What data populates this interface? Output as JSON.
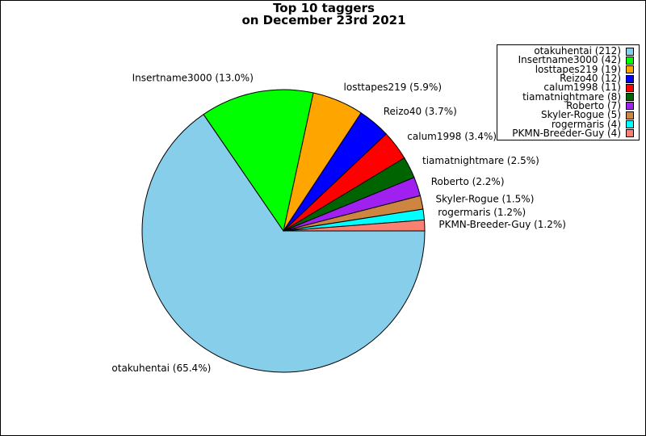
{
  "chart_data": {
    "type": "pie",
    "title": "Top 10 taggers",
    "subtitle": "on December 23rd 2021",
    "slices": [
      {
        "name": "otakuhentai",
        "count": 212,
        "percent_label": "65.4%",
        "color": "#87ceeb"
      },
      {
        "name": "Insertname3000",
        "count": 42,
        "percent_label": "13.0%",
        "color": "#00ff00"
      },
      {
        "name": "losttapes219",
        "count": 19,
        "percent_label": "5.9%",
        "color": "#ffa500"
      },
      {
        "name": "Reizo40",
        "count": 12,
        "percent_label": "3.7%",
        "color": "#0000ff"
      },
      {
        "name": "calum1998",
        "count": 11,
        "percent_label": "3.4%",
        "color": "#ff0000"
      },
      {
        "name": "tiamatnightmare",
        "count": 8,
        "percent_label": "2.5%",
        "color": "#006400"
      },
      {
        "name": "Roberto",
        "count": 7,
        "percent_label": "2.2%",
        "color": "#a020f0"
      },
      {
        "name": "Skyler-Rogue",
        "count": 5,
        "percent_label": "1.5%",
        "color": "#cd853f"
      },
      {
        "name": "rogermaris",
        "count": 4,
        "percent_label": "1.2%",
        "color": "#00ffff"
      },
      {
        "name": "PKMN-Breeder-Guy",
        "count": 4,
        "percent_label": "1.2%",
        "color": "#fa8072"
      }
    ],
    "start_angle_deg": 0,
    "direction": "clockwise",
    "legend_position": "top-right"
  }
}
